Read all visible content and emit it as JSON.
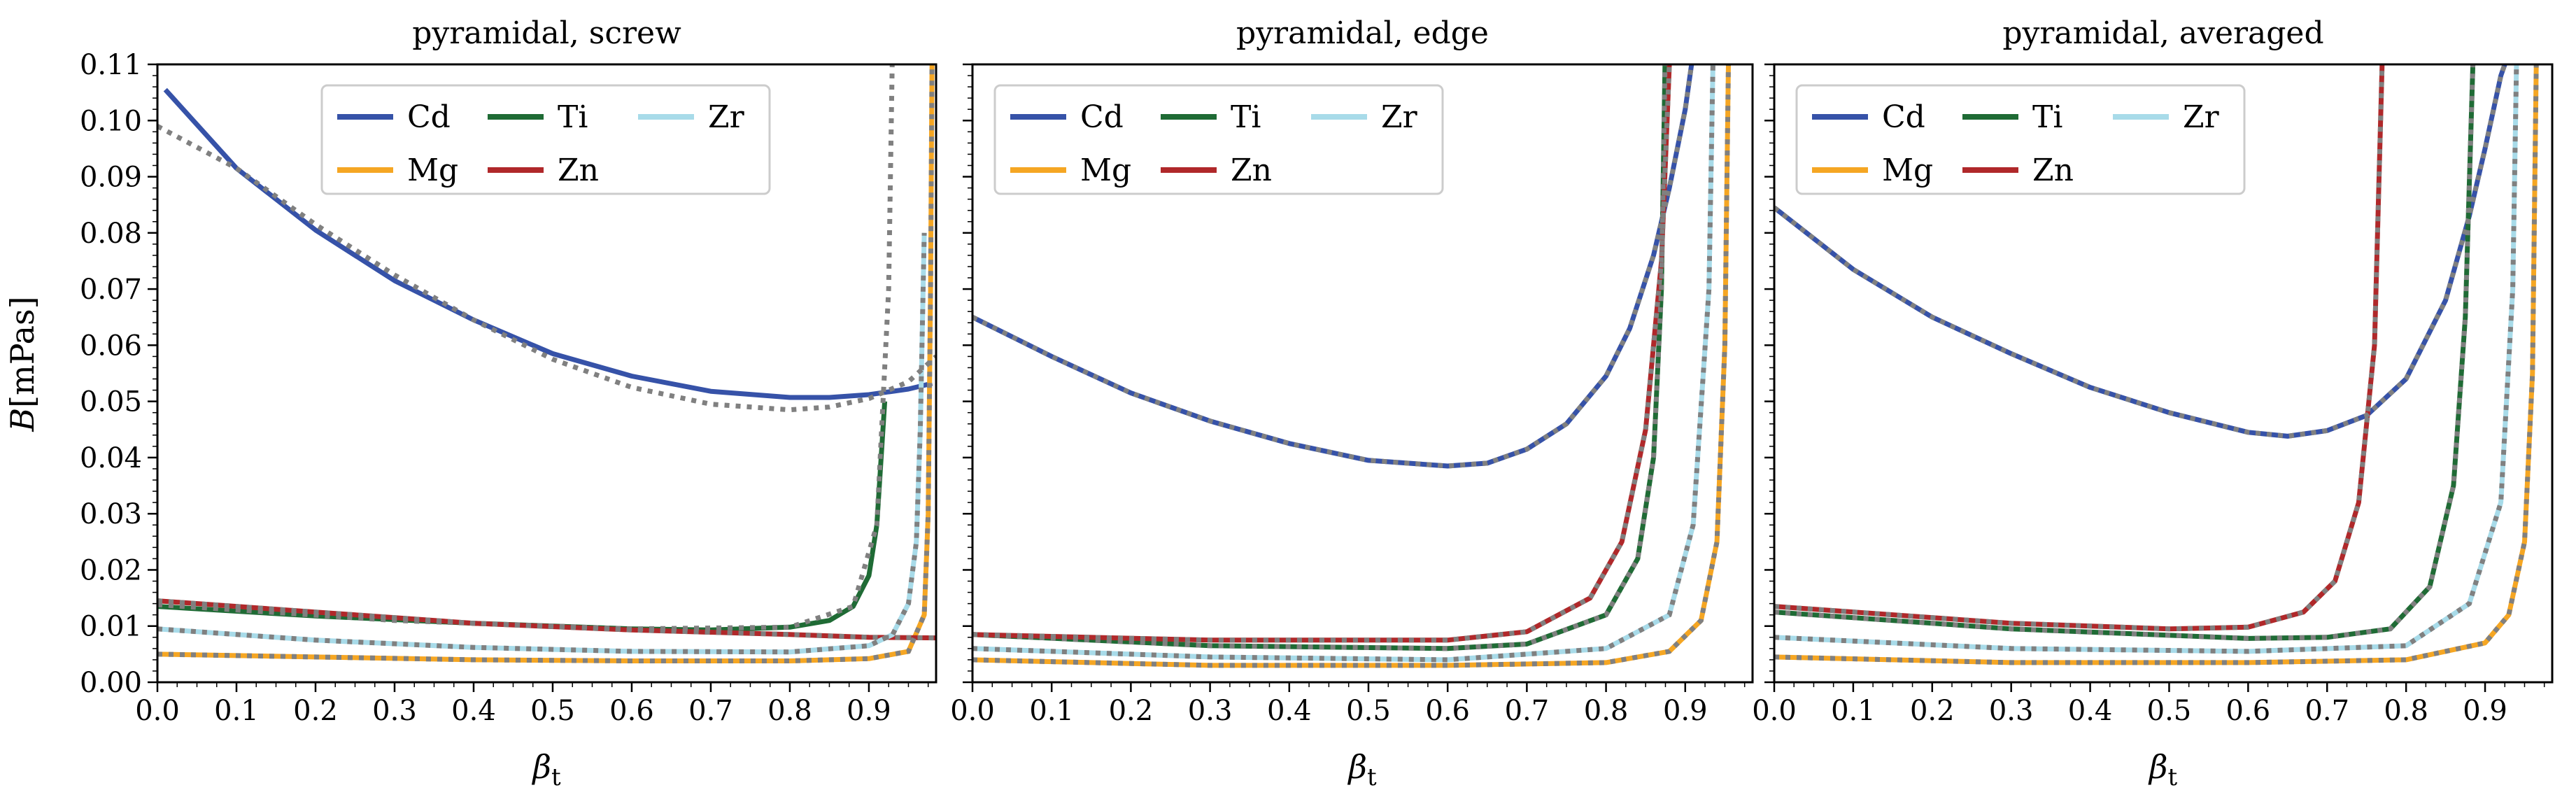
{
  "chart_data": [
    {
      "type": "line",
      "title": "pyramidal, screw",
      "xlabel": "β_t",
      "ylabel": "B[mPas]",
      "xlim": [
        0.0,
        0.985
      ],
      "ylim": [
        0.0,
        0.11
      ],
      "xticks": [
        "0.0",
        "0.1",
        "0.2",
        "0.3",
        "0.4",
        "0.5",
        "0.6",
        "0.7",
        "0.8",
        "0.9"
      ],
      "yticks": [
        "0.00",
        "0.01",
        "0.02",
        "0.03",
        "0.04",
        "0.05",
        "0.06",
        "0.07",
        "0.08",
        "0.09",
        "0.10",
        "0.11"
      ],
      "legend": [
        "Cd",
        "Mg",
        "Ti",
        "Zn",
        "Zr"
      ],
      "series": [
        {
          "name": "Cd",
          "x": [
            0.01,
            0.1,
            0.2,
            0.3,
            0.4,
            0.5,
            0.6,
            0.7,
            0.8,
            0.85,
            0.9,
            0.95,
            0.98
          ],
          "values": [
            0.1055,
            0.0915,
            0.0805,
            0.0715,
            0.0645,
            0.0585,
            0.0545,
            0.0518,
            0.0507,
            0.0507,
            0.0512,
            0.0522,
            0.0532
          ]
        },
        {
          "name": "Cd fit",
          "x": [
            0.0,
            0.1,
            0.2,
            0.3,
            0.4,
            0.5,
            0.6,
            0.7,
            0.8,
            0.85,
            0.9,
            0.95,
            0.985
          ],
          "values": [
            0.099,
            0.0915,
            0.0815,
            0.0725,
            0.0645,
            0.0575,
            0.0525,
            0.0495,
            0.0485,
            0.049,
            0.0505,
            0.0535,
            0.058
          ]
        },
        {
          "name": "Mg",
          "x": [
            0.0,
            0.2,
            0.4,
            0.6,
            0.8,
            0.9,
            0.95,
            0.97,
            0.975,
            0.978,
            0.98
          ],
          "values": [
            0.005,
            0.0045,
            0.004,
            0.0038,
            0.0038,
            0.0042,
            0.0055,
            0.012,
            0.03,
            0.07,
            0.115
          ]
        },
        {
          "name": "Ti",
          "x": [
            0.0,
            0.2,
            0.4,
            0.6,
            0.7,
            0.8,
            0.85,
            0.88,
            0.9,
            0.91,
            0.92
          ],
          "values": [
            0.0135,
            0.0118,
            0.0105,
            0.0095,
            0.0093,
            0.0098,
            0.011,
            0.0135,
            0.019,
            0.028,
            0.05
          ]
        },
        {
          "name": "Ti fit",
          "x": [
            0.0,
            0.3,
            0.6,
            0.8,
            0.88,
            0.91,
            0.925,
            0.93
          ],
          "values": [
            0.0138,
            0.011,
            0.0095,
            0.0098,
            0.0135,
            0.028,
            0.07,
            0.115
          ]
        },
        {
          "name": "Zn",
          "x": [
            0.0,
            0.2,
            0.4,
            0.6,
            0.8,
            0.9,
            0.985
          ],
          "values": [
            0.0145,
            0.0125,
            0.0105,
            0.0093,
            0.0085,
            0.008,
            0.0079
          ]
        },
        {
          "name": "Zr",
          "x": [
            0.0,
            0.2,
            0.4,
            0.6,
            0.8,
            0.9,
            0.93,
            0.95,
            0.96,
            0.965,
            0.97
          ],
          "values": [
            0.0095,
            0.0075,
            0.0062,
            0.0055,
            0.0054,
            0.0065,
            0.0085,
            0.014,
            0.025,
            0.045,
            0.08
          ]
        }
      ]
    },
    {
      "type": "line",
      "title": "pyramidal, edge",
      "xlabel": "β_t",
      "ylabel": "",
      "xlim": [
        0.0,
        0.985
      ],
      "ylim": [
        0.0,
        0.11
      ],
      "xticks": [
        "0.0",
        "0.1",
        "0.2",
        "0.3",
        "0.4",
        "0.5",
        "0.6",
        "0.7",
        "0.8",
        "0.9"
      ],
      "yticks": [],
      "legend": [
        "Cd",
        "Mg",
        "Ti",
        "Zn",
        "Zr"
      ],
      "series": [
        {
          "name": "Cd",
          "x": [
            0.0,
            0.1,
            0.2,
            0.3,
            0.4,
            0.5,
            0.6,
            0.65,
            0.7,
            0.75,
            0.8,
            0.83,
            0.86,
            0.88,
            0.9,
            0.91
          ],
          "values": [
            0.065,
            0.058,
            0.0515,
            0.0465,
            0.0425,
            0.0395,
            0.0385,
            0.039,
            0.0415,
            0.046,
            0.0545,
            0.063,
            0.076,
            0.088,
            0.102,
            0.112
          ]
        },
        {
          "name": "Mg",
          "x": [
            0.0,
            0.3,
            0.6,
            0.8,
            0.88,
            0.92,
            0.94,
            0.95,
            0.955
          ],
          "values": [
            0.004,
            0.003,
            0.003,
            0.0035,
            0.0055,
            0.011,
            0.025,
            0.06,
            0.115
          ]
        },
        {
          "name": "Ti",
          "x": [
            0.0,
            0.3,
            0.6,
            0.7,
            0.8,
            0.84,
            0.86,
            0.87,
            0.875
          ],
          "values": [
            0.0085,
            0.0065,
            0.006,
            0.0068,
            0.012,
            0.022,
            0.04,
            0.07,
            0.115
          ]
        },
        {
          "name": "Zn",
          "x": [
            0.0,
            0.3,
            0.6,
            0.7,
            0.78,
            0.82,
            0.85,
            0.87,
            0.88
          ],
          "values": [
            0.0085,
            0.0075,
            0.0075,
            0.009,
            0.015,
            0.025,
            0.045,
            0.075,
            0.11
          ]
        },
        {
          "name": "Zr",
          "x": [
            0.0,
            0.3,
            0.6,
            0.8,
            0.88,
            0.91,
            0.93,
            0.935
          ],
          "values": [
            0.006,
            0.0045,
            0.004,
            0.006,
            0.012,
            0.028,
            0.07,
            0.11
          ]
        }
      ]
    },
    {
      "type": "line",
      "title": "pyramidal, averaged",
      "xlabel": "β_t",
      "ylabel": "",
      "xlim": [
        0.0,
        0.985
      ],
      "ylim": [
        0.0,
        0.11
      ],
      "xticks": [
        "0.0",
        "0.1",
        "0.2",
        "0.3",
        "0.4",
        "0.5",
        "0.6",
        "0.7",
        "0.8",
        "0.9"
      ],
      "yticks": [],
      "legend": [
        "Cd",
        "Mg",
        "Ti",
        "Zn",
        "Zr"
      ],
      "series": [
        {
          "name": "Cd",
          "x": [
            0.0,
            0.1,
            0.2,
            0.3,
            0.4,
            0.5,
            0.6,
            0.65,
            0.7,
            0.75,
            0.8,
            0.85,
            0.88,
            0.9,
            0.92,
            0.93
          ],
          "values": [
            0.0845,
            0.0735,
            0.065,
            0.0585,
            0.0525,
            0.048,
            0.0445,
            0.0438,
            0.0448,
            0.0475,
            0.054,
            0.068,
            0.083,
            0.095,
            0.108,
            0.112
          ]
        },
        {
          "name": "Mg",
          "x": [
            0.0,
            0.3,
            0.6,
            0.8,
            0.9,
            0.93,
            0.95,
            0.96,
            0.965
          ],
          "values": [
            0.0045,
            0.0035,
            0.0035,
            0.004,
            0.007,
            0.012,
            0.025,
            0.055,
            0.112
          ]
        },
        {
          "name": "Ti",
          "x": [
            0.0,
            0.3,
            0.6,
            0.7,
            0.78,
            0.83,
            0.86,
            0.875,
            0.885
          ],
          "values": [
            0.0125,
            0.0095,
            0.0078,
            0.008,
            0.0095,
            0.017,
            0.035,
            0.065,
            0.112
          ]
        },
        {
          "name": "Zn",
          "x": [
            0.0,
            0.3,
            0.5,
            0.6,
            0.67,
            0.71,
            0.74,
            0.76,
            0.77
          ],
          "values": [
            0.0135,
            0.0105,
            0.0095,
            0.0098,
            0.0125,
            0.018,
            0.032,
            0.06,
            0.112
          ]
        },
        {
          "name": "Zr",
          "x": [
            0.0,
            0.3,
            0.6,
            0.8,
            0.88,
            0.92,
            0.935,
            0.94
          ],
          "values": [
            0.008,
            0.006,
            0.0055,
            0.0065,
            0.014,
            0.032,
            0.07,
            0.112
          ]
        }
      ]
    }
  ],
  "colors": {
    "Cd": "#3652a8",
    "Mg": "#f5a623",
    "Ti": "#1f6b35",
    "Zn": "#b0282a",
    "Zr": "#a8dbe9",
    "fit": "#808080"
  }
}
